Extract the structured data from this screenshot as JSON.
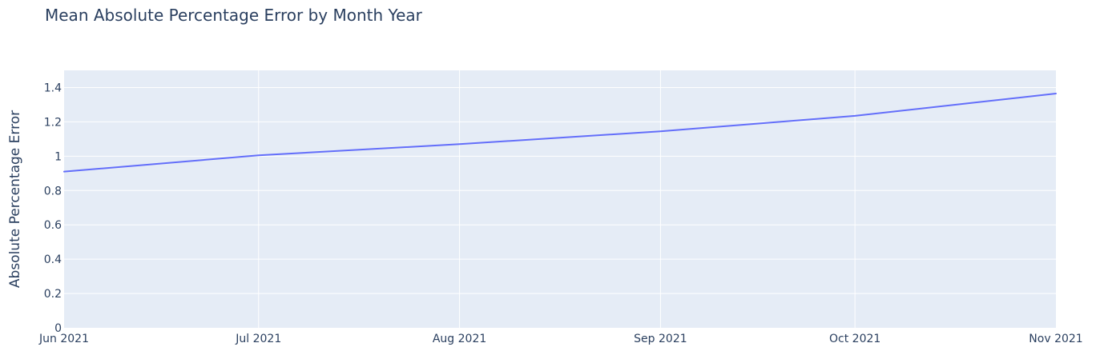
{
  "chart_data": {
    "type": "line",
    "title": "Mean Absolute Percentage Error by Month Year",
    "xlabel": "",
    "ylabel": "Absolute Percentage Error",
    "x": [
      "2021-06-01",
      "2021-07-01",
      "2021-08-01",
      "2021-09-01",
      "2021-10-01",
      "2021-11-01"
    ],
    "x_tick_labels": [
      "Jun 2021",
      "Jul 2021",
      "Aug 2021",
      "Sep 2021",
      "Oct 2021",
      "Nov 2021"
    ],
    "series": [
      {
        "values": [
          0.91,
          1.005,
          1.07,
          1.145,
          1.235,
          1.365
        ]
      }
    ],
    "ylim": [
      0,
      1.5
    ],
    "y_ticks": [
      0,
      0.2,
      0.4,
      0.6,
      0.8,
      1,
      1.2,
      1.4
    ],
    "y_tick_labels": [
      "0",
      "0.2",
      "0.4",
      "0.6",
      "0.8",
      "1",
      "1.2",
      "1.4"
    ],
    "grid": true,
    "colors": {
      "plot_background": "#e5ecf6",
      "grid": "#ffffff",
      "line": "#636efa",
      "text": "#2a3f5f"
    }
  }
}
